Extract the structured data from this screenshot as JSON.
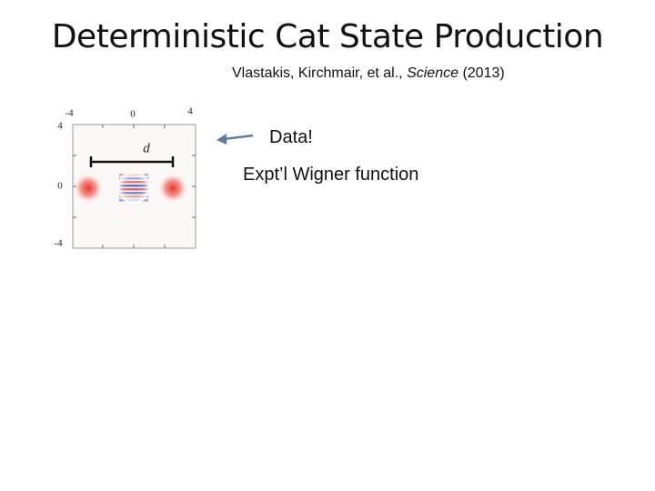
{
  "title": "Deterministic Cat State Production",
  "citation": {
    "authors": "Vlastakis, Kirchmair, et al.,",
    "journal": "Science",
    "year": "(2013)"
  },
  "figure": {
    "x_tick_labels": [
      "-4",
      "0",
      "4"
    ],
    "y_tick_labels": [
      "4",
      "0",
      "-4"
    ],
    "distance_label": "d"
  },
  "annotations": [
    "Data!",
    "Expt’l Wigner function"
  ]
}
